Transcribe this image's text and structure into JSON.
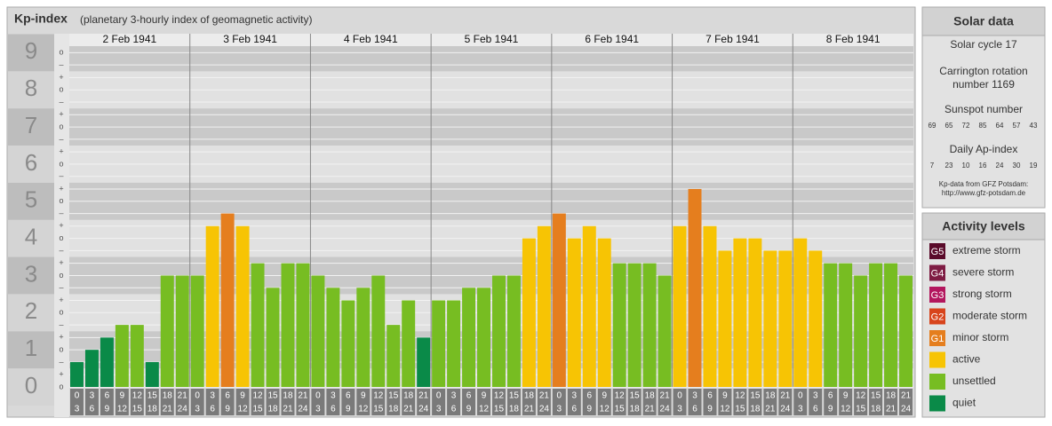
{
  "chart_data": {
    "type": "bar",
    "title": "Kp-index",
    "subtitle": "(planetary 3-hourly index of geomagnetic activity)",
    "days": [
      {
        "date": "2 Feb 1941",
        "values": [
          0.67,
          1.0,
          1.33,
          1.67,
          1.67,
          0.67,
          3.0,
          3.0
        ],
        "colors": [
          "#0a8a48",
          "#0a8a48",
          "#0a8a48",
          "#77bd22",
          "#77bd22",
          "#0a8a48",
          "#77bd22",
          "#77bd22"
        ]
      },
      {
        "date": "3 Feb 1941",
        "values": [
          3.0,
          4.33,
          4.67,
          4.33,
          3.33,
          2.67,
          3.33,
          3.33
        ],
        "colors": [
          "#77bd22",
          "#f7c404",
          "#e57e1e",
          "#f7c404",
          "#77bd22",
          "#77bd22",
          "#77bd22",
          "#77bd22"
        ]
      },
      {
        "date": "4 Feb 1941",
        "values": [
          3.0,
          2.67,
          2.33,
          2.67,
          3.0,
          1.67,
          2.33,
          1.33
        ],
        "colors": [
          "#77bd22",
          "#77bd22",
          "#77bd22",
          "#77bd22",
          "#77bd22",
          "#77bd22",
          "#77bd22",
          "#0a8a48"
        ]
      },
      {
        "date": "5 Feb 1941",
        "values": [
          2.33,
          2.33,
          2.67,
          2.67,
          3.0,
          3.0,
          4.0,
          4.33
        ],
        "colors": [
          "#77bd22",
          "#77bd22",
          "#77bd22",
          "#77bd22",
          "#77bd22",
          "#77bd22",
          "#f7c404",
          "#f7c404"
        ]
      },
      {
        "date": "6 Feb 1941",
        "values": [
          4.67,
          4.0,
          4.33,
          4.0,
          3.33,
          3.33,
          3.33,
          3.0
        ],
        "colors": [
          "#e57e1e",
          "#f7c404",
          "#f7c404",
          "#f7c404",
          "#77bd22",
          "#77bd22",
          "#77bd22",
          "#77bd22"
        ]
      },
      {
        "date": "7 Feb 1941",
        "values": [
          4.33,
          5.33,
          4.33,
          3.67,
          4.0,
          4.0,
          3.67,
          3.67
        ],
        "colors": [
          "#f7c404",
          "#e57e1e",
          "#f7c404",
          "#f7c404",
          "#f7c404",
          "#f7c404",
          "#f7c404",
          "#f7c404"
        ]
      },
      {
        "date": "8 Feb 1941",
        "values": [
          4.0,
          3.67,
          3.33,
          3.33,
          3.0,
          3.33,
          3.33,
          3.0
        ],
        "colors": [
          "#f7c404",
          "#f7c404",
          "#77bd22",
          "#77bd22",
          "#77bd22",
          "#77bd22",
          "#77bd22",
          "#77bd22"
        ]
      }
    ],
    "hours": [
      [
        "0",
        "3"
      ],
      [
        "3",
        "6"
      ],
      [
        "6",
        "9"
      ],
      [
        "9",
        "12"
      ],
      [
        "12",
        "15"
      ],
      [
        "15",
        "18"
      ],
      [
        "18",
        "21"
      ],
      [
        "21",
        "24"
      ]
    ],
    "ylim": [
      0,
      9.2
    ],
    "yticks": [
      0,
      1,
      2,
      3,
      4,
      5,
      6,
      7,
      8,
      9
    ],
    "yticks_minor": [
      {
        "value": 0,
        "label": "o"
      },
      {
        "value": 0.33,
        "label": "+"
      },
      {
        "value": 0.67,
        "label": "–"
      },
      {
        "value": 1,
        "label": "o"
      },
      {
        "value": 1.33,
        "label": "+"
      },
      {
        "value": 1.67,
        "label": "–"
      },
      {
        "value": 2,
        "label": "o"
      },
      {
        "value": 2.33,
        "label": "+"
      },
      {
        "value": 2.67,
        "label": "–"
      },
      {
        "value": 3,
        "label": "o"
      },
      {
        "value": 3.33,
        "label": "+"
      },
      {
        "value": 3.67,
        "label": "–"
      },
      {
        "value": 4,
        "label": "o"
      },
      {
        "value": 4.33,
        "label": "+"
      },
      {
        "value": 4.67,
        "label": "–"
      },
      {
        "value": 5,
        "label": "o"
      },
      {
        "value": 5.33,
        "label": "+"
      },
      {
        "value": 5.67,
        "label": "–"
      },
      {
        "value": 6,
        "label": "o"
      },
      {
        "value": 6.33,
        "label": "+"
      },
      {
        "value": 6.67,
        "label": "–"
      },
      {
        "value": 7,
        "label": "o"
      },
      {
        "value": 7.33,
        "label": "+"
      },
      {
        "value": 7.67,
        "label": "–"
      },
      {
        "value": 8,
        "label": "o"
      },
      {
        "value": 8.33,
        "label": "+"
      },
      {
        "value": 8.67,
        "label": "–"
      },
      {
        "value": 9,
        "label": "o"
      }
    ],
    "grid": true
  },
  "solar_data": {
    "title": "Solar data",
    "cycle": "Solar cycle 17",
    "carrington": [
      "Carrington rotation",
      "number 1169"
    ],
    "sunspot_label": "Sunspot number",
    "sunspot_numbers": [
      69,
      65,
      72,
      85,
      64,
      57,
      43
    ],
    "ap_label": "Daily Ap-index",
    "ap_values": [
      7,
      23,
      10,
      16,
      24,
      30,
      19
    ],
    "source": [
      "Kp-data from GFZ Potsdam:",
      "http://www.gfz-potsdam.de"
    ]
  },
  "activity_levels": {
    "title": "Activity levels",
    "levels": [
      {
        "code": "G5",
        "name": "extreme storm",
        "color": "#5a0b2a"
      },
      {
        "code": "G4",
        "name": "severe storm",
        "color": "#7e1c43"
      },
      {
        "code": "G3",
        "name": "strong storm",
        "color": "#b3175e"
      },
      {
        "code": "G2",
        "name": "moderate storm",
        "color": "#d8441c"
      },
      {
        "code": "G1",
        "name": "minor storm",
        "color": "#e57e1e"
      },
      {
        "name": "active",
        "color": "#f7c404"
      },
      {
        "name": "unsettled",
        "color": "#77bd22"
      },
      {
        "name": "quiet",
        "color": "#0a8a48"
      }
    ]
  }
}
